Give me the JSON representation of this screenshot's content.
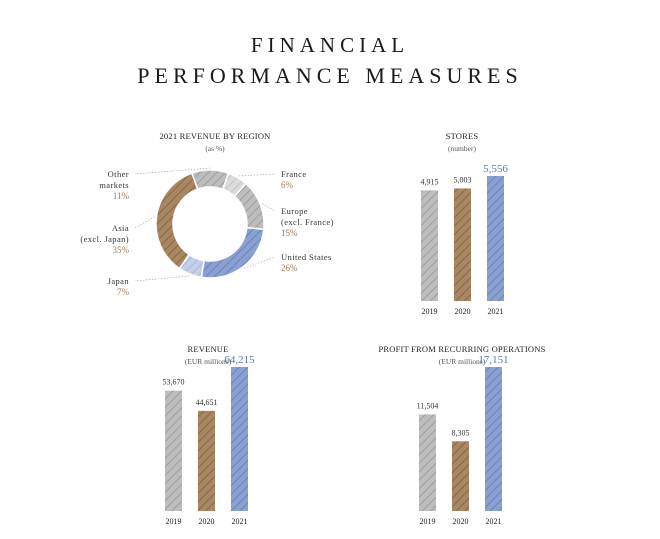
{
  "page": {
    "title_line1": "FINANCIAL",
    "title_line2": "PERFORMANCE MEASURES"
  },
  "colors": {
    "grey": "#b4b4b4",
    "brown": "#9c7b57",
    "blue": "#7b93c8",
    "grey_light": "#d2d2d2",
    "blue_light": "#b6c5e2",
    "highlight_text": "#5b78b4",
    "pct_text": "#9a7a55"
  },
  "chart_data": [
    {
      "id": "region",
      "type": "pie",
      "title": "2021 REVENUE BY REGION",
      "subtitle": "(as %)",
      "slices": [
        {
          "label_lines": [
            "France"
          ],
          "pct_label": "6%",
          "value": 6,
          "color": "grey_light"
        },
        {
          "label_lines": [
            "Europe",
            "(excl. France)"
          ],
          "pct_label": "15%",
          "value": 15,
          "color": "grey"
        },
        {
          "label_lines": [
            "United States"
          ],
          "pct_label": "26%",
          "value": 26,
          "color": "blue"
        },
        {
          "label_lines": [
            "Japan"
          ],
          "pct_label": "7%",
          "value": 7,
          "color": "blue_light"
        },
        {
          "label_lines": [
            "Asia",
            "(excl. Japan)"
          ],
          "pct_label": "35%",
          "value": 35,
          "color": "brown"
        },
        {
          "label_lines": [
            "Other",
            "markets"
          ],
          "pct_label": "11%",
          "value": 11,
          "color": "grey"
        }
      ]
    },
    {
      "id": "stores",
      "type": "bar",
      "title": "STORES",
      "subtitle": "(number)",
      "categories": [
        "2019",
        "2020",
        "2021"
      ],
      "values": [
        4915,
        5003,
        5556
      ],
      "value_labels": [
        "4,915",
        "5,003",
        "5,556"
      ],
      "colors": [
        "grey",
        "brown",
        "blue"
      ],
      "highlight_index": 2
    },
    {
      "id": "revenue",
      "type": "bar",
      "title": "REVENUE",
      "subtitle": "(EUR millions)",
      "categories": [
        "2019",
        "2020",
        "2021"
      ],
      "values": [
        53670,
        44651,
        64215
      ],
      "value_labels": [
        "53,670",
        "44,651",
        "64,215"
      ],
      "colors": [
        "grey",
        "brown",
        "blue"
      ],
      "highlight_index": 2
    },
    {
      "id": "profit",
      "type": "bar",
      "title": "PROFIT FROM RECURRING OPERATIONS",
      "subtitle": "(EUR millions)",
      "categories": [
        "2019",
        "2020",
        "2021"
      ],
      "values": [
        11504,
        8305,
        17151
      ],
      "value_labels": [
        "11,504",
        "8,305",
        "17,151"
      ],
      "colors": [
        "grey",
        "brown",
        "blue"
      ],
      "highlight_index": 2
    }
  ]
}
